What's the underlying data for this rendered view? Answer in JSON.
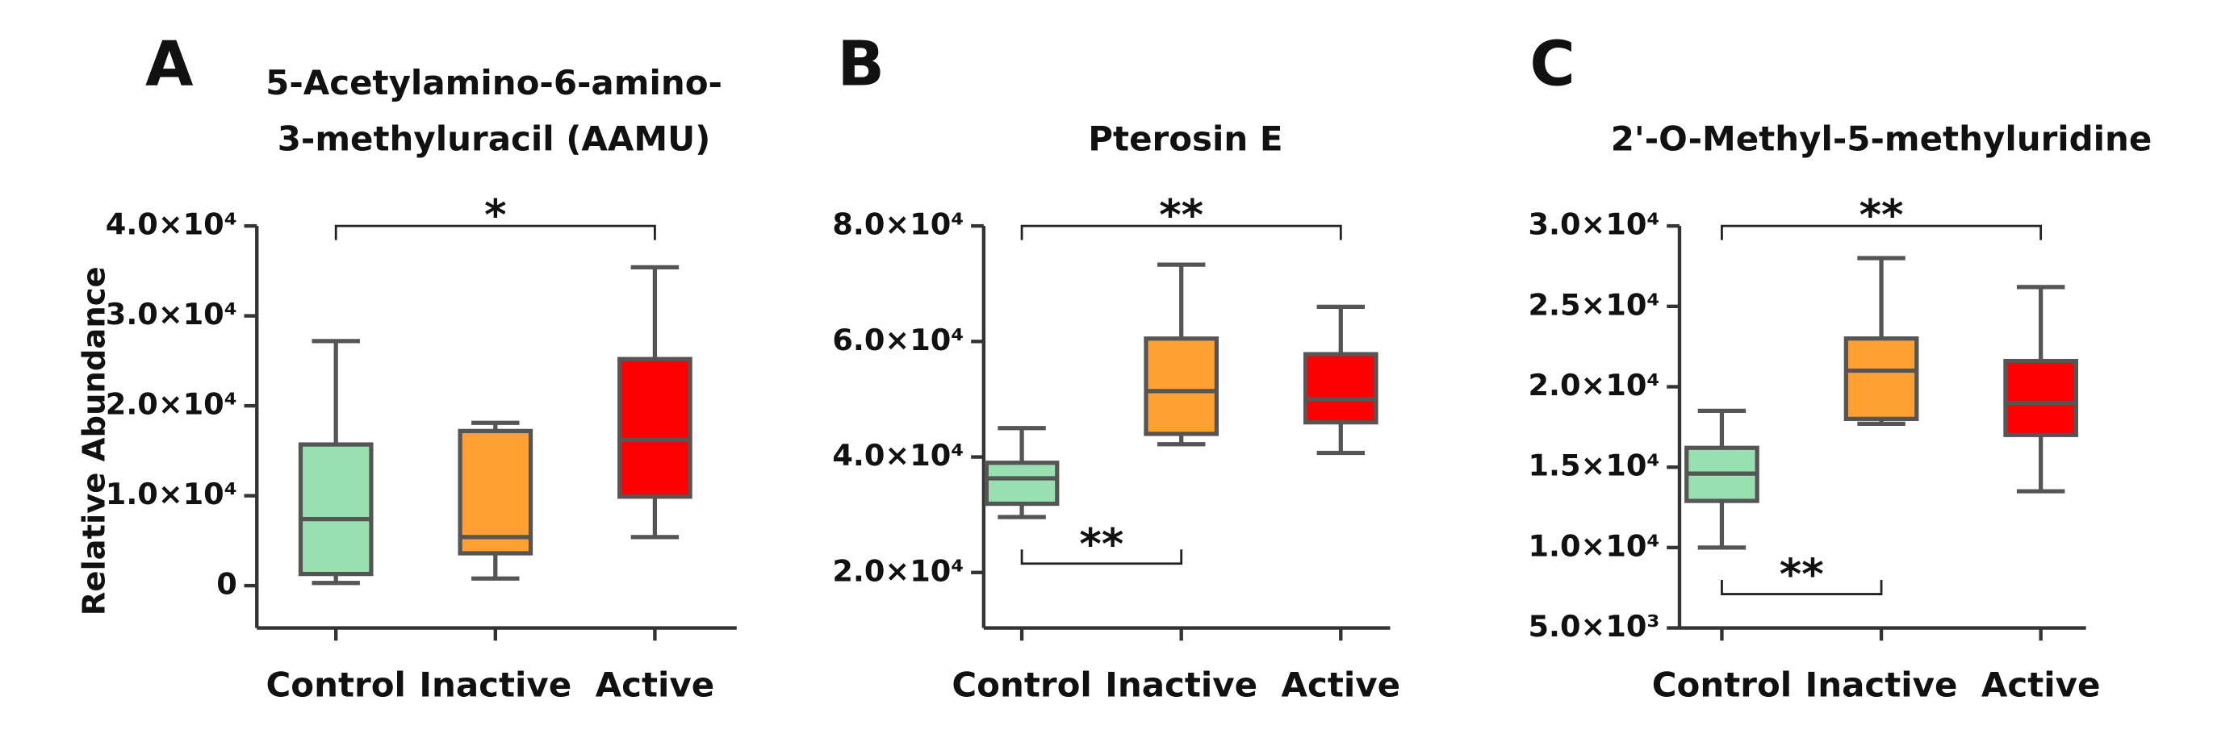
{
  "chart_data": [
    {
      "type": "box",
      "panel": "A",
      "title": [
        "5-Acetylamino-6-amino-",
        "3-methyluracil (AAMU)"
      ],
      "y_label": "Relative Abundance",
      "categories": [
        "Control",
        "Inactive",
        "Active"
      ],
      "colors": [
        "#99e0b0",
        "#ffa031",
        "#ff0000"
      ],
      "boxes": [
        {
          "min": 300,
          "q1": 1300,
          "median": 7400,
          "q3": 15700,
          "max": 27200
        },
        {
          "min": 800,
          "q1": 3600,
          "median": 5400,
          "q3": 17200,
          "max": 18100
        },
        {
          "min": 5400,
          "q1": 9900,
          "median": 16200,
          "q3": 25200,
          "max": 35400
        }
      ],
      "ylim": [
        -4700,
        40000
      ],
      "yticks": [
        0,
        {
          "value": 10000,
          "label": "1.0×10⁴"
        },
        {
          "value": 20000,
          "label": "2.0×10⁴"
        },
        {
          "value": 30000,
          "label": "3.0×10⁴"
        },
        {
          "value": 40000,
          "label": "4.0×10⁴"
        }
      ],
      "annotations": [
        {
          "text": "*",
          "between": [
            "Control",
            "Active"
          ]
        }
      ]
    },
    {
      "type": "box",
      "panel": "B",
      "title": [
        "Pterosin E"
      ],
      "categories": [
        "Control",
        "Inactive",
        "Active"
      ],
      "colors": [
        "#99e0b0",
        "#ffa031",
        "#ff0000"
      ],
      "boxes": [
        {
          "min": 29600,
          "q1": 31900,
          "median": 36300,
          "q3": 39000,
          "max": 45000
        },
        {
          "min": 42200,
          "q1": 44000,
          "median": 51400,
          "q3": 60500,
          "max": 73300
        },
        {
          "min": 40700,
          "q1": 46000,
          "median": 50000,
          "q3": 57800,
          "max": 66000
        }
      ],
      "ylim": [
        10400,
        80000
      ],
      "yticks": [
        {
          "value": 20000,
          "label": "2.0×10⁴"
        },
        {
          "value": 40000,
          "label": "4.0×10⁴"
        },
        {
          "value": 60000,
          "label": "6.0×10⁴"
        },
        {
          "value": 80000,
          "label": "8.0×10⁴"
        }
      ],
      "annotations": [
        {
          "text": "**",
          "between": [
            "Control",
            "Active"
          ]
        },
        {
          "text": "**",
          "between": [
            "Control",
            "Inactive"
          ]
        }
      ]
    },
    {
      "type": "box",
      "panel": "C",
      "title": [
        "2'-O-Methyl-5-methyluridine"
      ],
      "categories": [
        "Control",
        "Inactive",
        "Active"
      ],
      "colors": [
        "#99e0b0",
        "#ffa031",
        "#ff0000"
      ],
      "boxes": [
        {
          "min": 10000,
          "q1": 12900,
          "median": 14600,
          "q3": 16200,
          "max": 18500
        },
        {
          "min": 17700,
          "q1": 18000,
          "median": 21000,
          "q3": 23000,
          "max": 28000
        },
        {
          "min": 13500,
          "q1": 17000,
          "median": 19000,
          "q3": 21600,
          "max": 26200
        }
      ],
      "ylim": [
        5000,
        30000
      ],
      "yticks": [
        {
          "value": 5000,
          "label": "5.0×10³"
        },
        {
          "value": 10000,
          "label": "1.0×10⁴"
        },
        {
          "value": 15000,
          "label": "1.5×10⁴"
        },
        {
          "value": 20000,
          "label": "2.0×10⁴"
        },
        {
          "value": 25000,
          "label": "2.5×10⁴"
        },
        {
          "value": 30000,
          "label": "3.0×10⁴"
        }
      ],
      "annotations": [
        {
          "text": "**",
          "between": [
            "Control",
            "Active"
          ]
        },
        {
          "text": "**",
          "between": [
            "Control",
            "Inactive"
          ]
        }
      ]
    }
  ]
}
